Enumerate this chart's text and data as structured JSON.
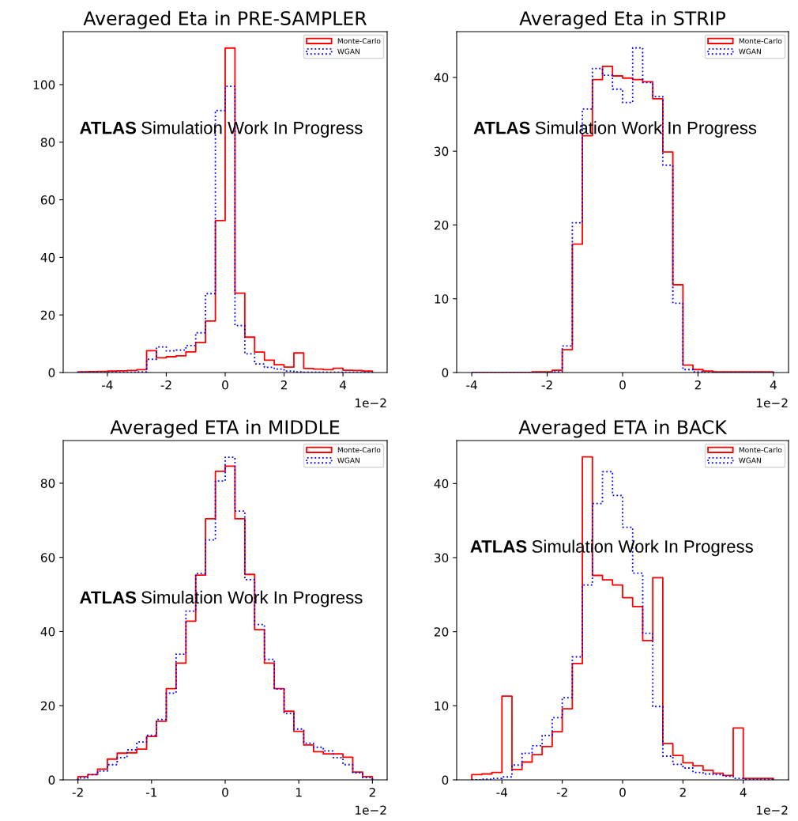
{
  "chart_data": [
    {
      "type": "histogram",
      "title": "Averaged Eta in PRE-SAMPLER",
      "bins": [
        -5.0,
        -4.667,
        -4.333,
        -4.0,
        -3.667,
        -3.333,
        -3.0,
        -2.667,
        -2.333,
        -2.0,
        -1.667,
        -1.333,
        -1.0,
        -0.667,
        -0.333,
        0.0,
        0.333,
        0.667,
        1.0,
        1.333,
        1.667,
        2.0,
        2.333,
        2.667,
        3.0,
        3.333,
        3.667,
        4.0,
        4.333,
        4.667,
        5.0
      ],
      "series": [
        {
          "name": "Monte-Carlo",
          "color": "#ff0000",
          "line_style": "solid",
          "values": [
            0.2,
            0.3,
            0.4,
            0.5,
            0.6,
            0.7,
            1.0,
            7.6,
            5.1,
            5.5,
            5.8,
            7.2,
            10.4,
            17.9,
            52.8,
            112.7,
            27.6,
            12.3,
            7.1,
            4.3,
            2.7,
            1.9,
            6.8,
            1.4,
            1.2,
            1.0,
            1.5,
            0.8,
            0.7,
            0.5
          ]
        },
        {
          "name": "WGAN",
          "color": "#0000ff",
          "line_style": "dotted",
          "values": [
            0.1,
            0.1,
            0.1,
            0.1,
            0.1,
            0.1,
            0.2,
            4.6,
            8.9,
            7.5,
            7.8,
            9.4,
            13.8,
            27.4,
            91.0,
            99.4,
            16.3,
            6.5,
            3.0,
            1.8,
            1.2,
            0.5,
            0.2,
            0.1,
            0.1,
            0.1,
            0.1,
            0.1,
            0.1,
            0.1
          ]
        }
      ],
      "xlim": [
        -5.5,
        5.5
      ],
      "xticks": [
        -4,
        -2,
        0,
        2,
        4
      ],
      "ylim": [
        0,
        118.4
      ],
      "yticks": [
        0,
        20,
        40,
        60,
        80,
        100
      ],
      "legend": "top right",
      "annotations": [
        "ATLAS",
        "Simulation Work In Progress",
        "1e−2"
      ]
    },
    {
      "type": "histogram",
      "title": "Averaged Eta in STRIP",
      "bins": [
        -4.0,
        -3.733,
        -3.467,
        -3.2,
        -2.933,
        -2.667,
        -2.4,
        -2.133,
        -1.867,
        -1.6,
        -1.333,
        -1.067,
        -0.8,
        -0.533,
        -0.267,
        0.0,
        0.267,
        0.533,
        0.8,
        1.067,
        1.333,
        1.6,
        1.867,
        2.133,
        2.4,
        2.667,
        2.933,
        3.2,
        3.467,
        3.733,
        4.0
      ],
      "series": [
        {
          "name": "Monte-Carlo",
          "color": "#ff0000",
          "line_style": "solid",
          "values": [
            0.0,
            0.0,
            0.0,
            0.0,
            0.0,
            0.0,
            0.1,
            0.1,
            0.3,
            3.1,
            17.4,
            32.1,
            39.7,
            41.5,
            40.2,
            39.9,
            39.7,
            39.4,
            37.1,
            29.9,
            11.9,
            1.0,
            0.4,
            0.2,
            0.1,
            0.1,
            0.1,
            0.1,
            0.1,
            0.1
          ]
        },
        {
          "name": "WGAN",
          "color": "#0000ff",
          "line_style": "dotted",
          "values": [
            0.0,
            0.0,
            0.0,
            0.0,
            0.0,
            0.0,
            0.0,
            0.0,
            0.1,
            3.6,
            20.3,
            35.7,
            41.2,
            40.3,
            38.4,
            36.6,
            44.0,
            39.3,
            37.4,
            28.1,
            9.4,
            0.4,
            0.1,
            0.0,
            0.0,
            0.0,
            0.0,
            0.0,
            0.0,
            0.0
          ]
        }
      ],
      "xlim": [
        -4.4,
        4.4
      ],
      "xticks": [
        -4,
        -2,
        0,
        2,
        4
      ],
      "ylim": [
        0,
        46.2
      ],
      "yticks": [
        0,
        10,
        20,
        30,
        40
      ],
      "legend": "top right",
      "annotations": [
        "ATLAS",
        "Simulation Work In Progress",
        "1e−2"
      ]
    },
    {
      "type": "histogram",
      "title": "Averaged ETA in MIDDLE",
      "bins": [
        -2.0,
        -1.867,
        -1.733,
        -1.6,
        -1.467,
        -1.333,
        -1.2,
        -1.067,
        -0.933,
        -0.8,
        -0.667,
        -0.533,
        -0.4,
        -0.267,
        -0.133,
        0.0,
        0.133,
        0.267,
        0.4,
        0.533,
        0.667,
        0.8,
        0.933,
        1.067,
        1.2,
        1.333,
        1.467,
        1.6,
        1.733,
        1.867,
        2.0
      ],
      "series": [
        {
          "name": "Monte-Carlo",
          "color": "#ff0000",
          "line_style": "solid",
          "values": [
            0.9,
            1.4,
            2.9,
            5.6,
            7.2,
            7.3,
            8.3,
            11.7,
            15.8,
            24.6,
            31.5,
            42.8,
            55.2,
            70.4,
            83.2,
            84.6,
            70.4,
            55.4,
            40.5,
            31.5,
            24.6,
            18.5,
            13.1,
            9.4,
            7.6,
            7.0,
            7.0,
            6.1,
            2.1,
            0.9
          ]
        },
        {
          "name": "WGAN",
          "color": "#0000ff",
          "line_style": "dotted",
          "values": [
            0.5,
            1.4,
            2.4,
            4.1,
            6.0,
            8.1,
            10.2,
            12.0,
            16.3,
            23.4,
            33.9,
            45.5,
            55.7,
            64.7,
            80.6,
            87.0,
            72.5,
            54.0,
            41.9,
            32.5,
            24.5,
            17.9,
            13.7,
            9.9,
            8.8,
            7.8,
            6.0,
            4.1,
            1.9,
            0.6
          ]
        }
      ],
      "xlim": [
        -2.2,
        2.2
      ],
      "xticks": [
        -2,
        -1,
        0,
        1,
        2
      ],
      "ylim": [
        0,
        91.5
      ],
      "yticks": [
        0,
        20,
        40,
        60,
        80
      ],
      "legend": "top right",
      "annotations": [
        "ATLAS",
        "Simulation Work In Progress",
        "1e−2"
      ]
    },
    {
      "type": "histogram",
      "title": "Averaged ETA in BACK",
      "bins": [
        -5.0,
        -4.667,
        -4.333,
        -4.0,
        -3.667,
        -3.333,
        -3.0,
        -2.667,
        -2.333,
        -2.0,
        -1.667,
        -1.333,
        -1.0,
        -0.667,
        -0.333,
        0.0,
        0.333,
        0.667,
        1.0,
        1.333,
        1.667,
        2.0,
        2.333,
        2.667,
        3.0,
        3.333,
        3.667,
        4.0,
        4.333,
        4.667,
        5.0
      ],
      "series": [
        {
          "name": "Monte-Carlo",
          "color": "#ff0000",
          "line_style": "solid",
          "values": [
            0.7,
            0.8,
            1.0,
            11.3,
            1.4,
            2.4,
            3.4,
            4.5,
            6.5,
            9.6,
            15.7,
            43.6,
            27.6,
            27.0,
            26.3,
            24.6,
            23.4,
            18.8,
            27.3,
            4.9,
            3.3,
            2.3,
            1.9,
            1.3,
            0.9,
            0.6,
            7.0,
            0.2,
            0.2,
            0.2
          ]
        },
        {
          "name": "WGAN",
          "color": "#0000ff",
          "line_style": "dotted",
          "values": [
            0.0,
            0.1,
            0.2,
            0.4,
            2.0,
            3.6,
            4.6,
            6.0,
            8.4,
            11.1,
            16.6,
            26.3,
            37.3,
            41.6,
            38.4,
            34.1,
            27.9,
            19.8,
            9.9,
            3.2,
            2.1,
            1.6,
            1.0,
            0.8,
            0.7,
            0.5,
            0.2,
            0.1,
            0.1,
            0.1
          ]
        }
      ],
      "xlim": [
        -5.5,
        5.5
      ],
      "xticks": [
        -4,
        -2,
        0,
        2,
        4
      ],
      "ylim": [
        0,
        45.8
      ],
      "yticks": [
        0,
        10,
        20,
        30,
        40
      ],
      "legend": "top right",
      "annotations": [
        "ATLAS",
        "Simulation Work In Progress",
        "1e−2"
      ]
    }
  ]
}
